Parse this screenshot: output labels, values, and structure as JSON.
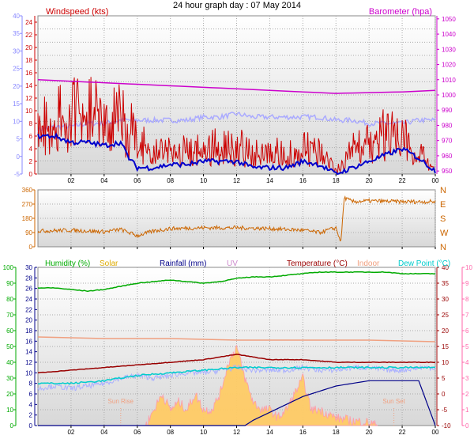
{
  "title": "24 hour graph day : 07 May 2014",
  "colors": {
    "wind": "#cc0000",
    "wind_avg": "#0000cc",
    "gust_temp": "#aaaaff",
    "baro": "#cc00cc",
    "dir": "#cc6600",
    "humidity": "#00aa00",
    "solar": "#ddaa00",
    "rain": "#000088",
    "uv": "#cc88cc",
    "temperature": "#990000",
    "indoor": "#f0a080",
    "dew": "#00cccc",
    "axis_left": "#8888ff",
    "axis_right": "#ff66aa"
  },
  "chart_data": [
    {
      "type": "line",
      "title": "24 hour graph day : 07 May 2014",
      "x_ticks": [
        "02",
        "04",
        "06",
        "08",
        "10",
        "12",
        "14",
        "16",
        "18",
        "20",
        "22",
        "00"
      ],
      "left_outer_axis": {
        "ticks": [
          "-5",
          "0",
          "5",
          "10",
          "15",
          "20",
          "25",
          "30",
          "35",
          "40"
        ],
        "ylim": [
          -5,
          40
        ]
      },
      "left_axis": {
        "label": "Windspeed (kts)",
        "ticks": [
          "0",
          "2",
          "4",
          "6",
          "8",
          "10",
          "12",
          "14",
          "16",
          "18",
          "20",
          "22",
          "24"
        ],
        "ylim": [
          0,
          25
        ]
      },
      "right_axis": {
        "label": "Barometer (hpa)",
        "ticks": [
          "950",
          "960",
          "970",
          "980",
          "990",
          "1000",
          "1010",
          "1020",
          "1030",
          "1040",
          "1050"
        ],
        "ylim": [
          948,
          1052
        ]
      },
      "series": [
        {
          "key": "gust",
          "x": [
            0,
            1,
            2,
            3,
            4,
            4.5,
            5,
            6,
            7,
            8,
            9,
            10,
            11,
            12,
            13,
            14,
            15,
            16,
            17,
            18,
            19,
            20,
            20.5,
            21,
            22,
            23,
            24
          ],
          "values": [
            14,
            13,
            15,
            16,
            18,
            17,
            14,
            9,
            6,
            6,
            7,
            7,
            7,
            7,
            6,
            6,
            5,
            7,
            6,
            1,
            7,
            8,
            10,
            10,
            9,
            6,
            3
          ]
        },
        {
          "key": "wind",
          "x": [
            0,
            1,
            2,
            3,
            4,
            4.5,
            5,
            6,
            7,
            8,
            9,
            10,
            11,
            12,
            13,
            14,
            15,
            16,
            17,
            18,
            19,
            20,
            20.5,
            21,
            22,
            23,
            24
          ],
          "values": [
            10,
            9,
            10,
            11,
            12,
            11,
            9,
            6,
            3,
            3,
            4,
            4,
            4,
            4,
            3,
            3,
            3,
            4,
            3,
            0,
            4,
            5,
            6,
            6,
            6,
            3,
            1
          ]
        },
        {
          "key": "avg",
          "x": [
            0,
            1,
            2,
            3,
            4,
            5,
            5.5,
            6,
            7,
            8,
            9,
            10,
            11,
            12,
            13,
            14,
            15,
            16,
            17,
            18,
            19,
            20,
            21,
            22,
            23,
            24
          ],
          "values": [
            6,
            6,
            5,
            5,
            4.5,
            5,
            2.5,
            1,
            1,
            1.5,
            1.5,
            2,
            2,
            2,
            1,
            1,
            1,
            2,
            1.5,
            0,
            1,
            2,
            3,
            4,
            2.5,
            0.5
          ]
        },
        {
          "key": "temp_light",
          "x": [
            0,
            1,
            2,
            3,
            4,
            5,
            6,
            7,
            8,
            9,
            10,
            11,
            12,
            13,
            14,
            15,
            16,
            17,
            18,
            19,
            20,
            21,
            22,
            23,
            24
          ],
          "values": [
            7,
            7.5,
            7.5,
            8,
            8,
            8.5,
            8.5,
            8.5,
            8.5,
            8.5,
            9,
            9,
            9.5,
            9,
            9,
            9,
            9,
            9,
            8.5,
            8.5,
            8,
            8,
            8,
            8.5,
            8.5
          ]
        },
        {
          "key": "baro",
          "x": [
            0,
            2,
            4,
            6,
            8,
            10,
            12,
            14,
            16,
            18,
            20,
            22,
            24
          ],
          "values": [
            1010,
            1009,
            1008,
            1007,
            1006,
            1005,
            1004,
            1003,
            1002,
            1001,
            1001.5,
            1002,
            1003
          ]
        }
      ]
    },
    {
      "type": "line",
      "y_ticks": [
        "0",
        "90",
        "180",
        "270",
        "360"
      ],
      "ylim": [
        0,
        360
      ],
      "compass_labels": [
        "N",
        "W",
        "S",
        "E",
        "N"
      ],
      "series": [
        {
          "key": "direction",
          "x": [
            0,
            2,
            4,
            5,
            6,
            7,
            8,
            10,
            12,
            14,
            16,
            17,
            18,
            18.3,
            18.5,
            19,
            20,
            22,
            24
          ],
          "values": [
            100,
            105,
            95,
            110,
            70,
            100,
            115,
            120,
            120,
            115,
            105,
            90,
            120,
            30,
            310,
            285,
            290,
            285,
            285
          ]
        }
      ]
    },
    {
      "type": "line",
      "legend": [
        "Humidity (%)",
        "Solar",
        "Rainfall (mm)",
        "UV",
        "Temperature (°C)",
        "Indoor",
        "Dew Point (°C)"
      ],
      "left_outer_axis": {
        "ticks": [
          "0",
          "10",
          "20",
          "30",
          "40",
          "50",
          "60",
          "70",
          "80",
          "90",
          "100"
        ],
        "ylim": [
          0,
          100
        ]
      },
      "left_axis": {
        "ticks": [
          "0",
          "2",
          "4",
          "6",
          "8",
          "10",
          "12",
          "14",
          "16",
          "18",
          "20",
          "22",
          "24",
          "26",
          "28",
          "30"
        ],
        "ylim": [
          0,
          30
        ]
      },
      "right_axis": {
        "ticks": [
          "-10",
          "-5",
          "0",
          "5",
          "10",
          "15",
          "20",
          "25",
          "30",
          "35",
          "40"
        ],
        "ylim": [
          -10,
          40
        ]
      },
      "far_right_axis": {
        "ticks": [
          "0",
          "1",
          "2",
          "3",
          "4",
          "5",
          "6",
          "7",
          "8",
          "9",
          "10"
        ],
        "ylim": [
          0,
          10
        ]
      },
      "annotations": [
        {
          "text": "Sun Rise",
          "x": 5
        },
        {
          "text": "Sun Set",
          "x": 21.5
        }
      ],
      "series": [
        {
          "key": "humidity",
          "x": [
            0,
            1,
            2,
            3,
            4,
            5,
            6,
            7,
            8,
            9,
            10,
            11,
            12,
            13,
            14,
            15,
            16,
            17,
            18,
            19,
            20,
            21,
            22,
            23,
            24
          ],
          "values": [
            87,
            87,
            86,
            85,
            86,
            88,
            90,
            91,
            92,
            91,
            90,
            91,
            93,
            94,
            94,
            95,
            96,
            97,
            97,
            97,
            97,
            97,
            96,
            96,
            96
          ]
        },
        {
          "key": "indoor",
          "x": [
            0,
            4,
            8,
            12,
            16,
            20,
            24
          ],
          "values": [
            56,
            55,
            55,
            54,
            54,
            54,
            53
          ]
        },
        {
          "key": "temperature",
          "x": [
            0,
            2,
            4,
            6,
            8,
            10,
            12,
            13,
            14,
            16,
            18,
            20,
            22,
            24
          ],
          "values": [
            10,
            10.5,
            11,
            11.5,
            12,
            12.5,
            13.5,
            13,
            12.5,
            12.5,
            12,
            12,
            12,
            12
          ]
        },
        {
          "key": "dew",
          "x": [
            0,
            2,
            4,
            6,
            8,
            10,
            12,
            14,
            16,
            18,
            20,
            22,
            24
          ],
          "values": [
            8,
            8,
            8.5,
            9.5,
            10,
            10.5,
            11,
            11,
            11,
            11,
            11,
            11,
            11
          ]
        },
        {
          "key": "dew_light",
          "x": [
            0,
            1,
            2,
            3,
            4,
            5,
            6,
            7,
            8,
            9,
            10,
            11,
            12,
            13,
            14,
            15,
            16,
            17,
            18,
            19,
            20,
            21,
            22,
            23,
            24
          ],
          "values": [
            7,
            7.5,
            7,
            7.5,
            8,
            9,
            9.5,
            9,
            9.5,
            10,
            10,
            10.5,
            11,
            10.5,
            10.5,
            10.5,
            11,
            10.5,
            10.5,
            11,
            11,
            10.5,
            10.5,
            11,
            11
          ]
        },
        {
          "key": "rain",
          "x": [
            0,
            12.5,
            13,
            14,
            15,
            16,
            17,
            18,
            19,
            20,
            21,
            22,
            23,
            24
          ],
          "values": [
            0,
            0,
            1,
            2.5,
            4,
            5.5,
            6.5,
            7.5,
            8,
            8.5,
            8.5,
            8.5,
            8.5,
            0
          ]
        },
        {
          "key": "solar",
          "x": [
            6.5,
            7,
            7.5,
            8,
            8.5,
            9,
            9.5,
            10,
            10.5,
            11,
            11.5,
            12,
            12.5,
            13,
            13.5,
            14,
            14.5,
            15,
            15.5,
            16,
            16.5,
            17,
            18,
            19,
            20,
            20.5
          ],
          "values": [
            0,
            1,
            2,
            1,
            1.5,
            1,
            2,
            1,
            1,
            2,
            4,
            5,
            3,
            1.5,
            1,
            1,
            0.5,
            1,
            2,
            3,
            1,
            1,
            0.5,
            0.3,
            0.2,
            0
          ]
        }
      ]
    }
  ]
}
